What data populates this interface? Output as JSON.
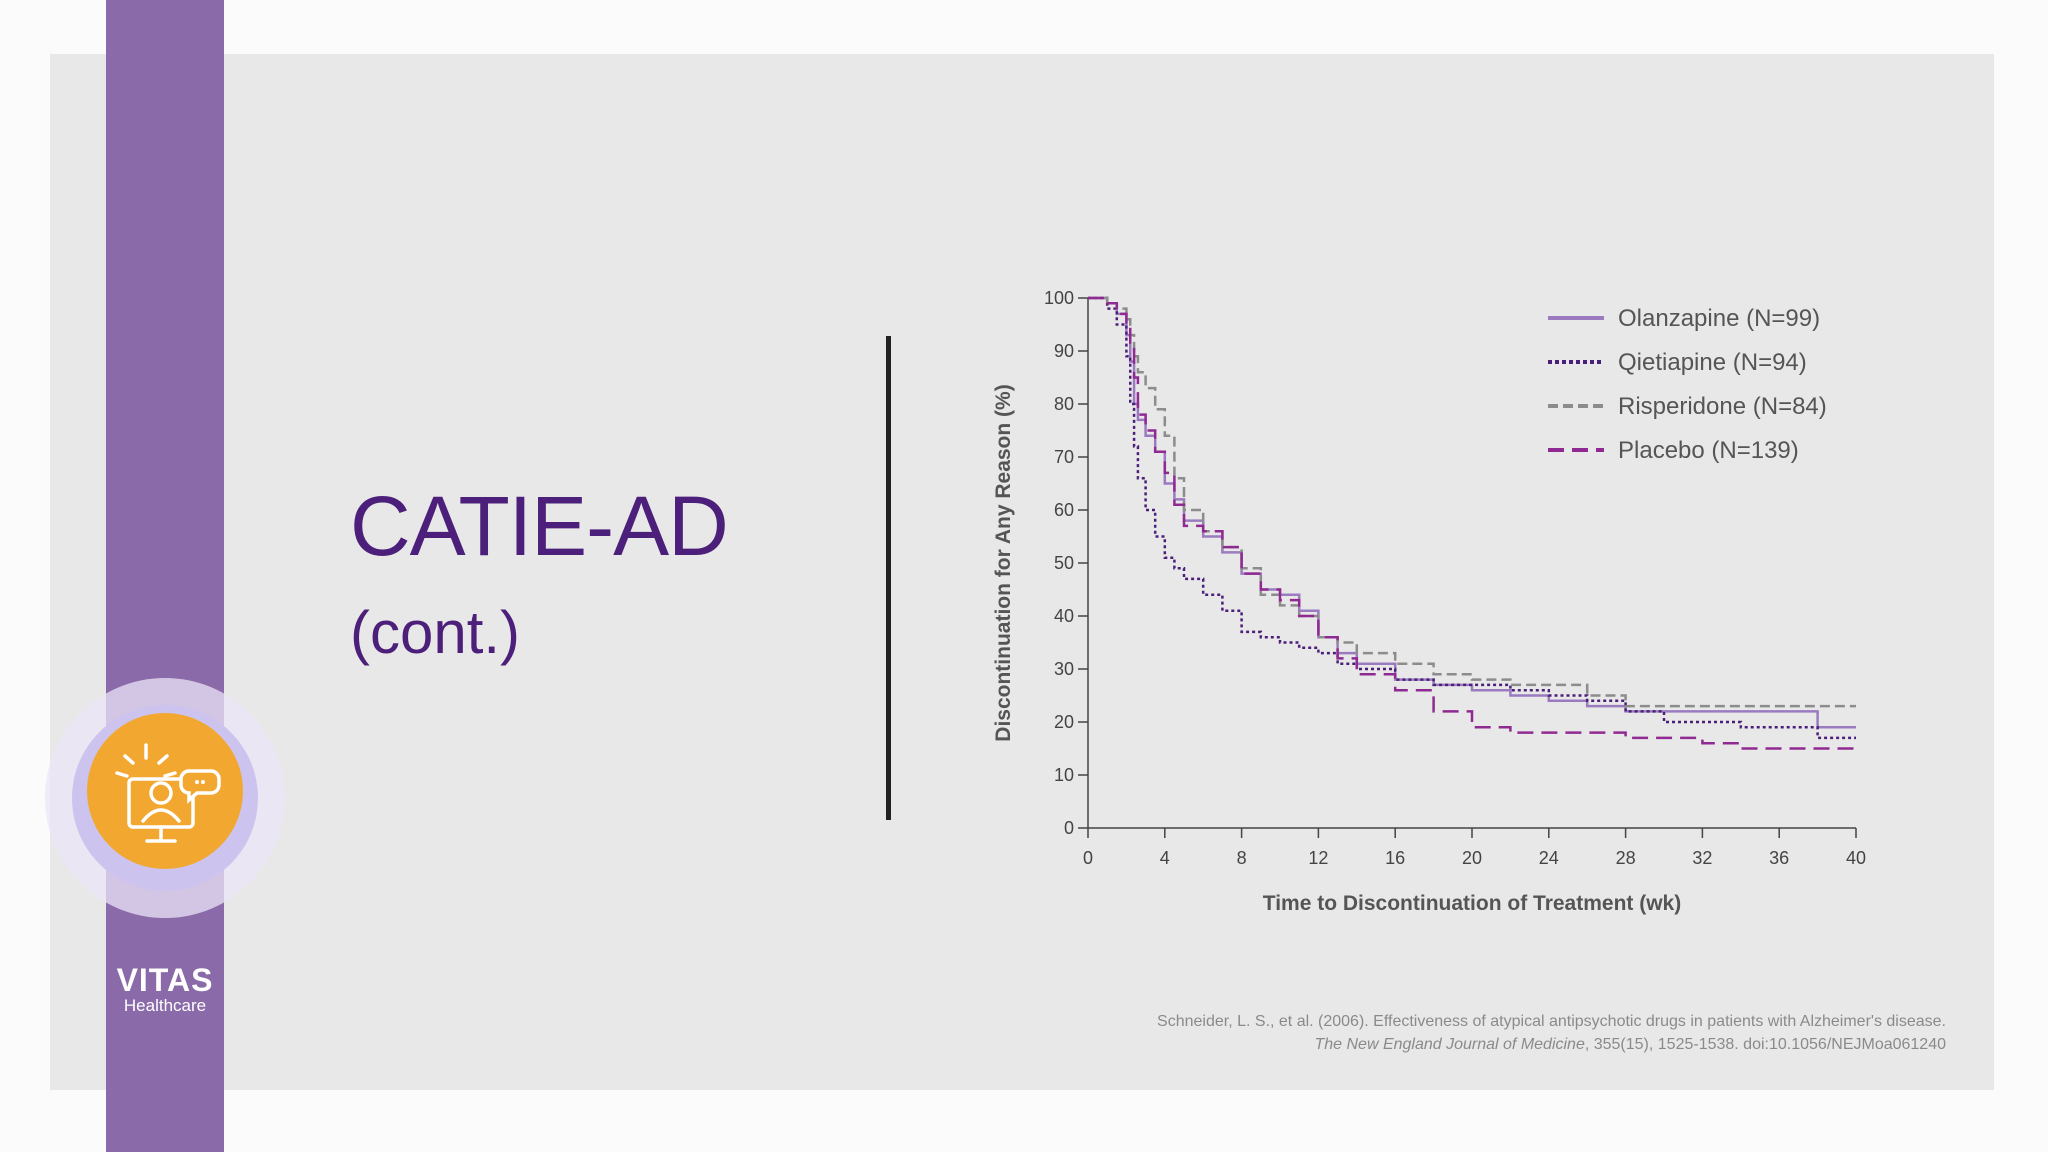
{
  "slide": {
    "title": "CATIE-AD",
    "subtitle": "(cont.)",
    "logo": {
      "name": "VITAS",
      "sub": "Healthcare"
    },
    "citation": {
      "line1": "Schneider, L. S., et al. (2006). Effectiveness of atypical antipsychotic drugs in patients with Alzheimer's disease.",
      "journal": "The New England Journal of Medicine",
      "line2_rest": ", 355(15), 1525-1538. doi:10.1056/NEJMoa061240"
    },
    "icon": "person-at-computer-with-chat-bubble-icon",
    "colors": {
      "title": "#4c1f7a",
      "band": "#8a6aa8",
      "icon_bg": "#f2a731",
      "olanzapine": "#9b7bbf",
      "quetiapine": "#4a1f7a",
      "risperidone": "#8c8c8c",
      "placebo": "#8e2a92"
    }
  },
  "chart_data": {
    "type": "line",
    "subtype": "kaplan-meier-step",
    "xlabel": "Time to Discontinuation of Treatment (wk)",
    "ylabel": "Discontinuation for Any Reason (%)",
    "xlim": [
      0,
      40
    ],
    "ylim": [
      0,
      100
    ],
    "xticks": [
      0,
      4,
      8,
      12,
      16,
      20,
      24,
      28,
      32,
      36,
      40
    ],
    "yticks": [
      0,
      10,
      20,
      30,
      40,
      50,
      60,
      70,
      80,
      90,
      100
    ],
    "legend_position": "top-right",
    "series": [
      {
        "name": "Olanzapine (N=99)",
        "style": "solid",
        "color": "#9b7bbf",
        "x": [
          0,
          1,
          1.5,
          2,
          2.2,
          2.4,
          2.6,
          3,
          3.5,
          4,
          4.5,
          5,
          6,
          7,
          8,
          9,
          10,
          11,
          12,
          13,
          14,
          16,
          18,
          20,
          22,
          24,
          26,
          28,
          30,
          32,
          34,
          36,
          38,
          40
        ],
        "y": [
          100,
          99,
          97,
          93,
          88,
          80,
          77,
          74,
          71,
          65,
          62,
          58,
          55,
          52,
          48,
          45,
          44,
          41,
          36,
          33,
          31,
          28,
          27,
          26,
          25,
          24,
          23,
          22,
          22,
          22,
          22,
          22,
          19,
          19
        ]
      },
      {
        "name": "Qietiapine (N=94)",
        "style": "dotted",
        "color": "#4a1f7a",
        "x": [
          0,
          1,
          1.5,
          2,
          2.2,
          2.4,
          2.6,
          3,
          3.5,
          4,
          4.5,
          5,
          6,
          7,
          8,
          9,
          10,
          11,
          12,
          13,
          14,
          16,
          18,
          20,
          22,
          24,
          26,
          28,
          30,
          32,
          34,
          36,
          38,
          40
        ],
        "y": [
          100,
          98,
          95,
          89,
          80,
          72,
          66,
          60,
          55,
          51,
          49,
          47,
          44,
          41,
          37,
          36,
          35,
          34,
          33,
          31,
          30,
          28,
          27,
          27,
          26,
          25,
          24,
          22,
          20,
          20,
          19,
          19,
          17,
          17
        ]
      },
      {
        "name": "Risperidone (N=84)",
        "style": "short-dash",
        "color": "#8c8c8c",
        "x": [
          0,
          1,
          1.5,
          2,
          2.2,
          2.4,
          2.6,
          3,
          3.5,
          4,
          4.5,
          5,
          6,
          7,
          8,
          9,
          10,
          11,
          12,
          13,
          14,
          16,
          18,
          20,
          22,
          24,
          26,
          28,
          30,
          32,
          34,
          36,
          38,
          40
        ],
        "y": [
          100,
          99,
          98,
          96,
          93,
          89,
          86,
          83,
          79,
          74,
          66,
          60,
          56,
          53,
          49,
          44,
          42,
          40,
          36,
          35,
          33,
          31,
          29,
          28,
          27,
          27,
          25,
          23,
          23,
          23,
          23,
          23,
          23,
          23
        ]
      },
      {
        "name": "Placebo (N=139)",
        "style": "long-dash",
        "color": "#8e2a92",
        "x": [
          0,
          1,
          1.5,
          2,
          2.2,
          2.4,
          2.6,
          3,
          3.5,
          4,
          4.5,
          5,
          6,
          7,
          8,
          9,
          10,
          11,
          12,
          13,
          14,
          16,
          18,
          20,
          22,
          24,
          26,
          28,
          30,
          32,
          34,
          36,
          38,
          40
        ],
        "y": [
          100,
          99,
          97,
          95,
          91,
          85,
          78,
          75,
          71,
          67,
          61,
          57,
          56,
          53,
          48,
          45,
          43,
          40,
          36,
          32,
          29,
          26,
          22,
          19,
          18,
          18,
          18,
          17,
          17,
          16,
          15,
          15,
          15,
          15
        ]
      }
    ]
  }
}
